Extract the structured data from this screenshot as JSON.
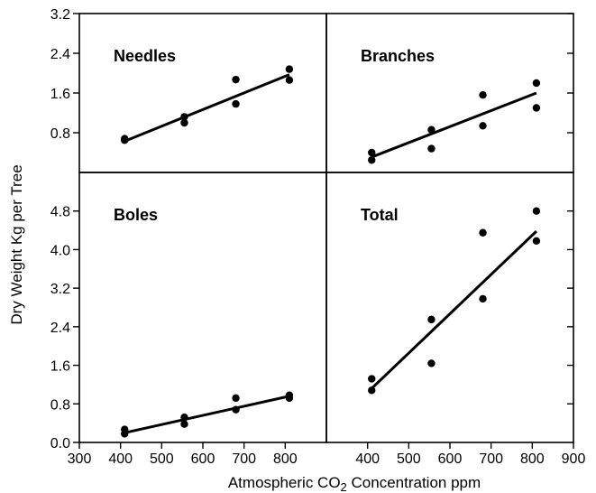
{
  "chart_data": [
    {
      "type": "scatter",
      "title": "Needles",
      "x": [
        410,
        410,
        555,
        555,
        680,
        680,
        810,
        810
      ],
      "y": [
        0.65,
        0.68,
        1.0,
        1.12,
        1.38,
        1.87,
        1.86,
        2.08
      ],
      "fit": {
        "x": [
          410,
          810
        ],
        "y": [
          0.63,
          1.97
        ]
      },
      "xlim": [
        300,
        900
      ],
      "ylim": [
        0,
        3.2
      ],
      "yticks": [
        "0.8",
        "1.6",
        "2.4",
        "3.2"
      ]
    },
    {
      "type": "scatter",
      "title": "Branches",
      "x": [
        410,
        410,
        555,
        555,
        680,
        680,
        810,
        810
      ],
      "y": [
        0.25,
        0.4,
        0.48,
        0.86,
        0.94,
        1.56,
        1.3,
        1.8
      ],
      "fit": {
        "x": [
          410,
          810
        ],
        "y": [
          0.31,
          1.6
        ]
      },
      "xlim": [
        300,
        900
      ],
      "ylim": [
        0,
        3.2
      ]
    },
    {
      "type": "scatter",
      "title": "Boles",
      "x": [
        410,
        410,
        555,
        555,
        680,
        680,
        810,
        810
      ],
      "y": [
        0.18,
        0.27,
        0.38,
        0.52,
        0.68,
        0.92,
        0.92,
        0.98
      ],
      "fit": {
        "x": [
          410,
          810
        ],
        "y": [
          0.2,
          0.96
        ]
      },
      "xlim": [
        300,
        900
      ],
      "ylim": [
        0,
        5.6
      ],
      "xticks": [
        "300",
        "400",
        "500",
        "600",
        "700",
        "800"
      ],
      "yticks": [
        "0.0",
        "0.8",
        "1.6",
        "2.4",
        "3.2",
        "4.0",
        "4.8"
      ]
    },
    {
      "type": "scatter",
      "title": "Total",
      "x": [
        410,
        410,
        555,
        555,
        680,
        680,
        810,
        810
      ],
      "y": [
        1.08,
        1.32,
        1.64,
        2.55,
        2.98,
        4.35,
        4.18,
        4.8
      ],
      "fit": {
        "x": [
          410,
          810
        ],
        "y": [
          1.12,
          4.38
        ]
      },
      "xlim": [
        300,
        900
      ],
      "ylim": [
        0,
        5.6
      ],
      "xticks": [
        "400",
        "500",
        "600",
        "700",
        "800",
        "900"
      ]
    }
  ],
  "ylabel": "Dry Weight  Kg per Tree",
  "xlabel": {
    "prefix": "Atmospheric CO",
    "subscript": "2",
    "suffix": " Concentration  ppm"
  }
}
